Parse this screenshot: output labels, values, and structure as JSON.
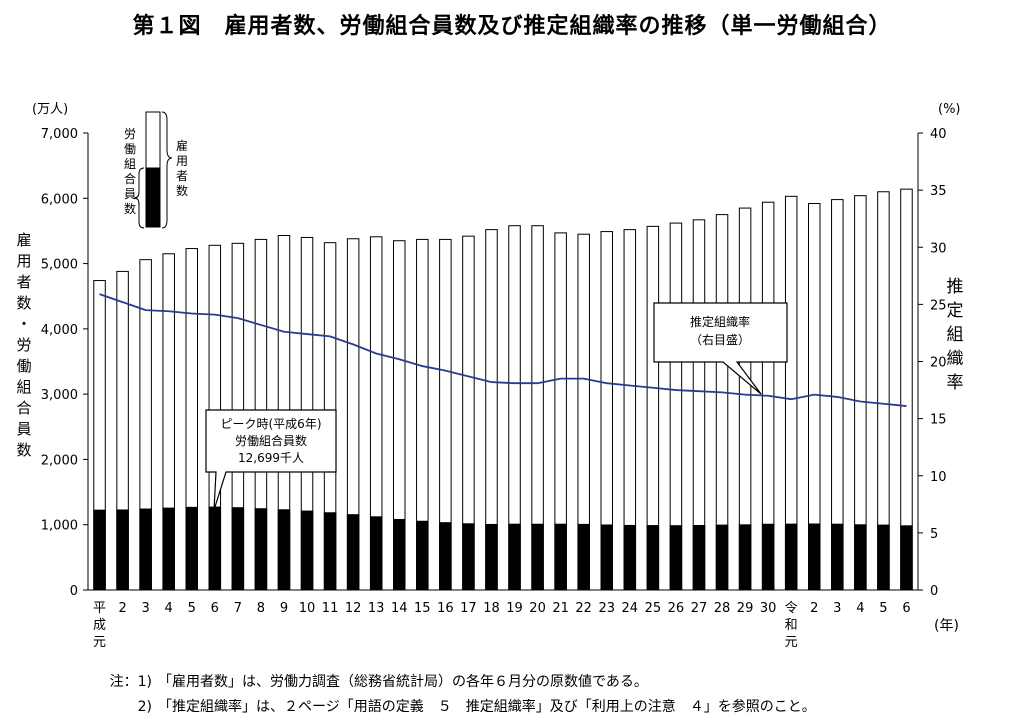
{
  "title": "第１図　雇用者数、労働組合員数及び推定組織率の推移（単一労働組合）",
  "left_unit": "(万人)",
  "right_unit": "(%)",
  "year_unit": "(年)",
  "left_axis_label": "雇用者数・労働組合員数",
  "right_axis_label": "推定組織率",
  "legend": {
    "union_label": "労働組合員数",
    "employee_label": "雇用者数"
  },
  "callouts": {
    "peak": [
      "ピーク時(平成6年)",
      "労働組合員数",
      "12,699千人"
    ],
    "rate": [
      "推定組織率",
      "（右目盛）"
    ]
  },
  "notes": [
    {
      "num": "注：1)",
      "text": "「雇用者数」は、労働力調査（総務省統計局）の各年６月分の原数値である。"
    },
    {
      "num": "2)",
      "text": "「推定組織率」は、２ページ「用語の定義　５　推定組織率」及び「利用上の注意　４」を参照のこと。"
    }
  ],
  "chart_data": {
    "type": "bar",
    "categories": [
      "平成元",
      "2",
      "3",
      "4",
      "5",
      "6",
      "7",
      "8",
      "9",
      "10",
      "11",
      "12",
      "13",
      "14",
      "15",
      "16",
      "17",
      "18",
      "19",
      "20",
      "21",
      "22",
      "23",
      "24",
      "25",
      "26",
      "27",
      "28",
      "29",
      "30",
      "令和元",
      "2",
      "3",
      "4",
      "5",
      "6"
    ],
    "y_left_ticks": [
      "0",
      "1,000",
      "2,000",
      "3,000",
      "4,000",
      "5,000",
      "6,000",
      "7,000"
    ],
    "y_right_ticks": [
      "0",
      "5",
      "10",
      "15",
      "20",
      "25",
      "30",
      "35",
      "40"
    ],
    "ylim_left": [
      0,
      7000
    ],
    "ylim_right": [
      0,
      40
    ],
    "series": [
      {
        "name": "雇用者数",
        "axis": "left",
        "kind": "bar",
        "values": [
          4740,
          4880,
          5060,
          5150,
          5230,
          5280,
          5310,
          5370,
          5430,
          5400,
          5320,
          5380,
          5410,
          5350,
          5370,
          5370,
          5420,
          5520,
          5580,
          5580,
          5470,
          5450,
          5490,
          5520,
          5570,
          5620,
          5670,
          5750,
          5850,
          5940,
          6030,
          5920,
          5980,
          6040,
          6100,
          6140
        ],
        "color": "#ffffff"
      },
      {
        "name": "労働組合員数",
        "axis": "left",
        "kind": "bar",
        "values": [
          1223,
          1226,
          1240,
          1254,
          1266,
          1270,
          1261,
          1245,
          1229,
          1209,
          1183,
          1154,
          1121,
          1080,
          1053,
          1031,
          1014,
          1004,
          1008,
          1007,
          1008,
          1005,
          996,
          989,
          987,
          985,
          988,
          994,
          998,
          1007,
          1009,
          1011,
          1008,
          999,
          994,
          983
        ],
        "color": "#000000"
      },
      {
        "name": "推定組織率",
        "axis": "right",
        "kind": "line",
        "values": [
          25.9,
          25.2,
          24.5,
          24.4,
          24.2,
          24.1,
          23.8,
          23.2,
          22.6,
          22.4,
          22.2,
          21.5,
          20.7,
          20.2,
          19.6,
          19.2,
          18.7,
          18.2,
          18.1,
          18.1,
          18.5,
          18.5,
          18.1,
          17.9,
          17.7,
          17.5,
          17.4,
          17.3,
          17.1,
          17.0,
          16.7,
          17.1,
          16.9,
          16.5,
          16.3,
          16.1
        ],
        "color": "#2b3a8f"
      }
    ]
  }
}
